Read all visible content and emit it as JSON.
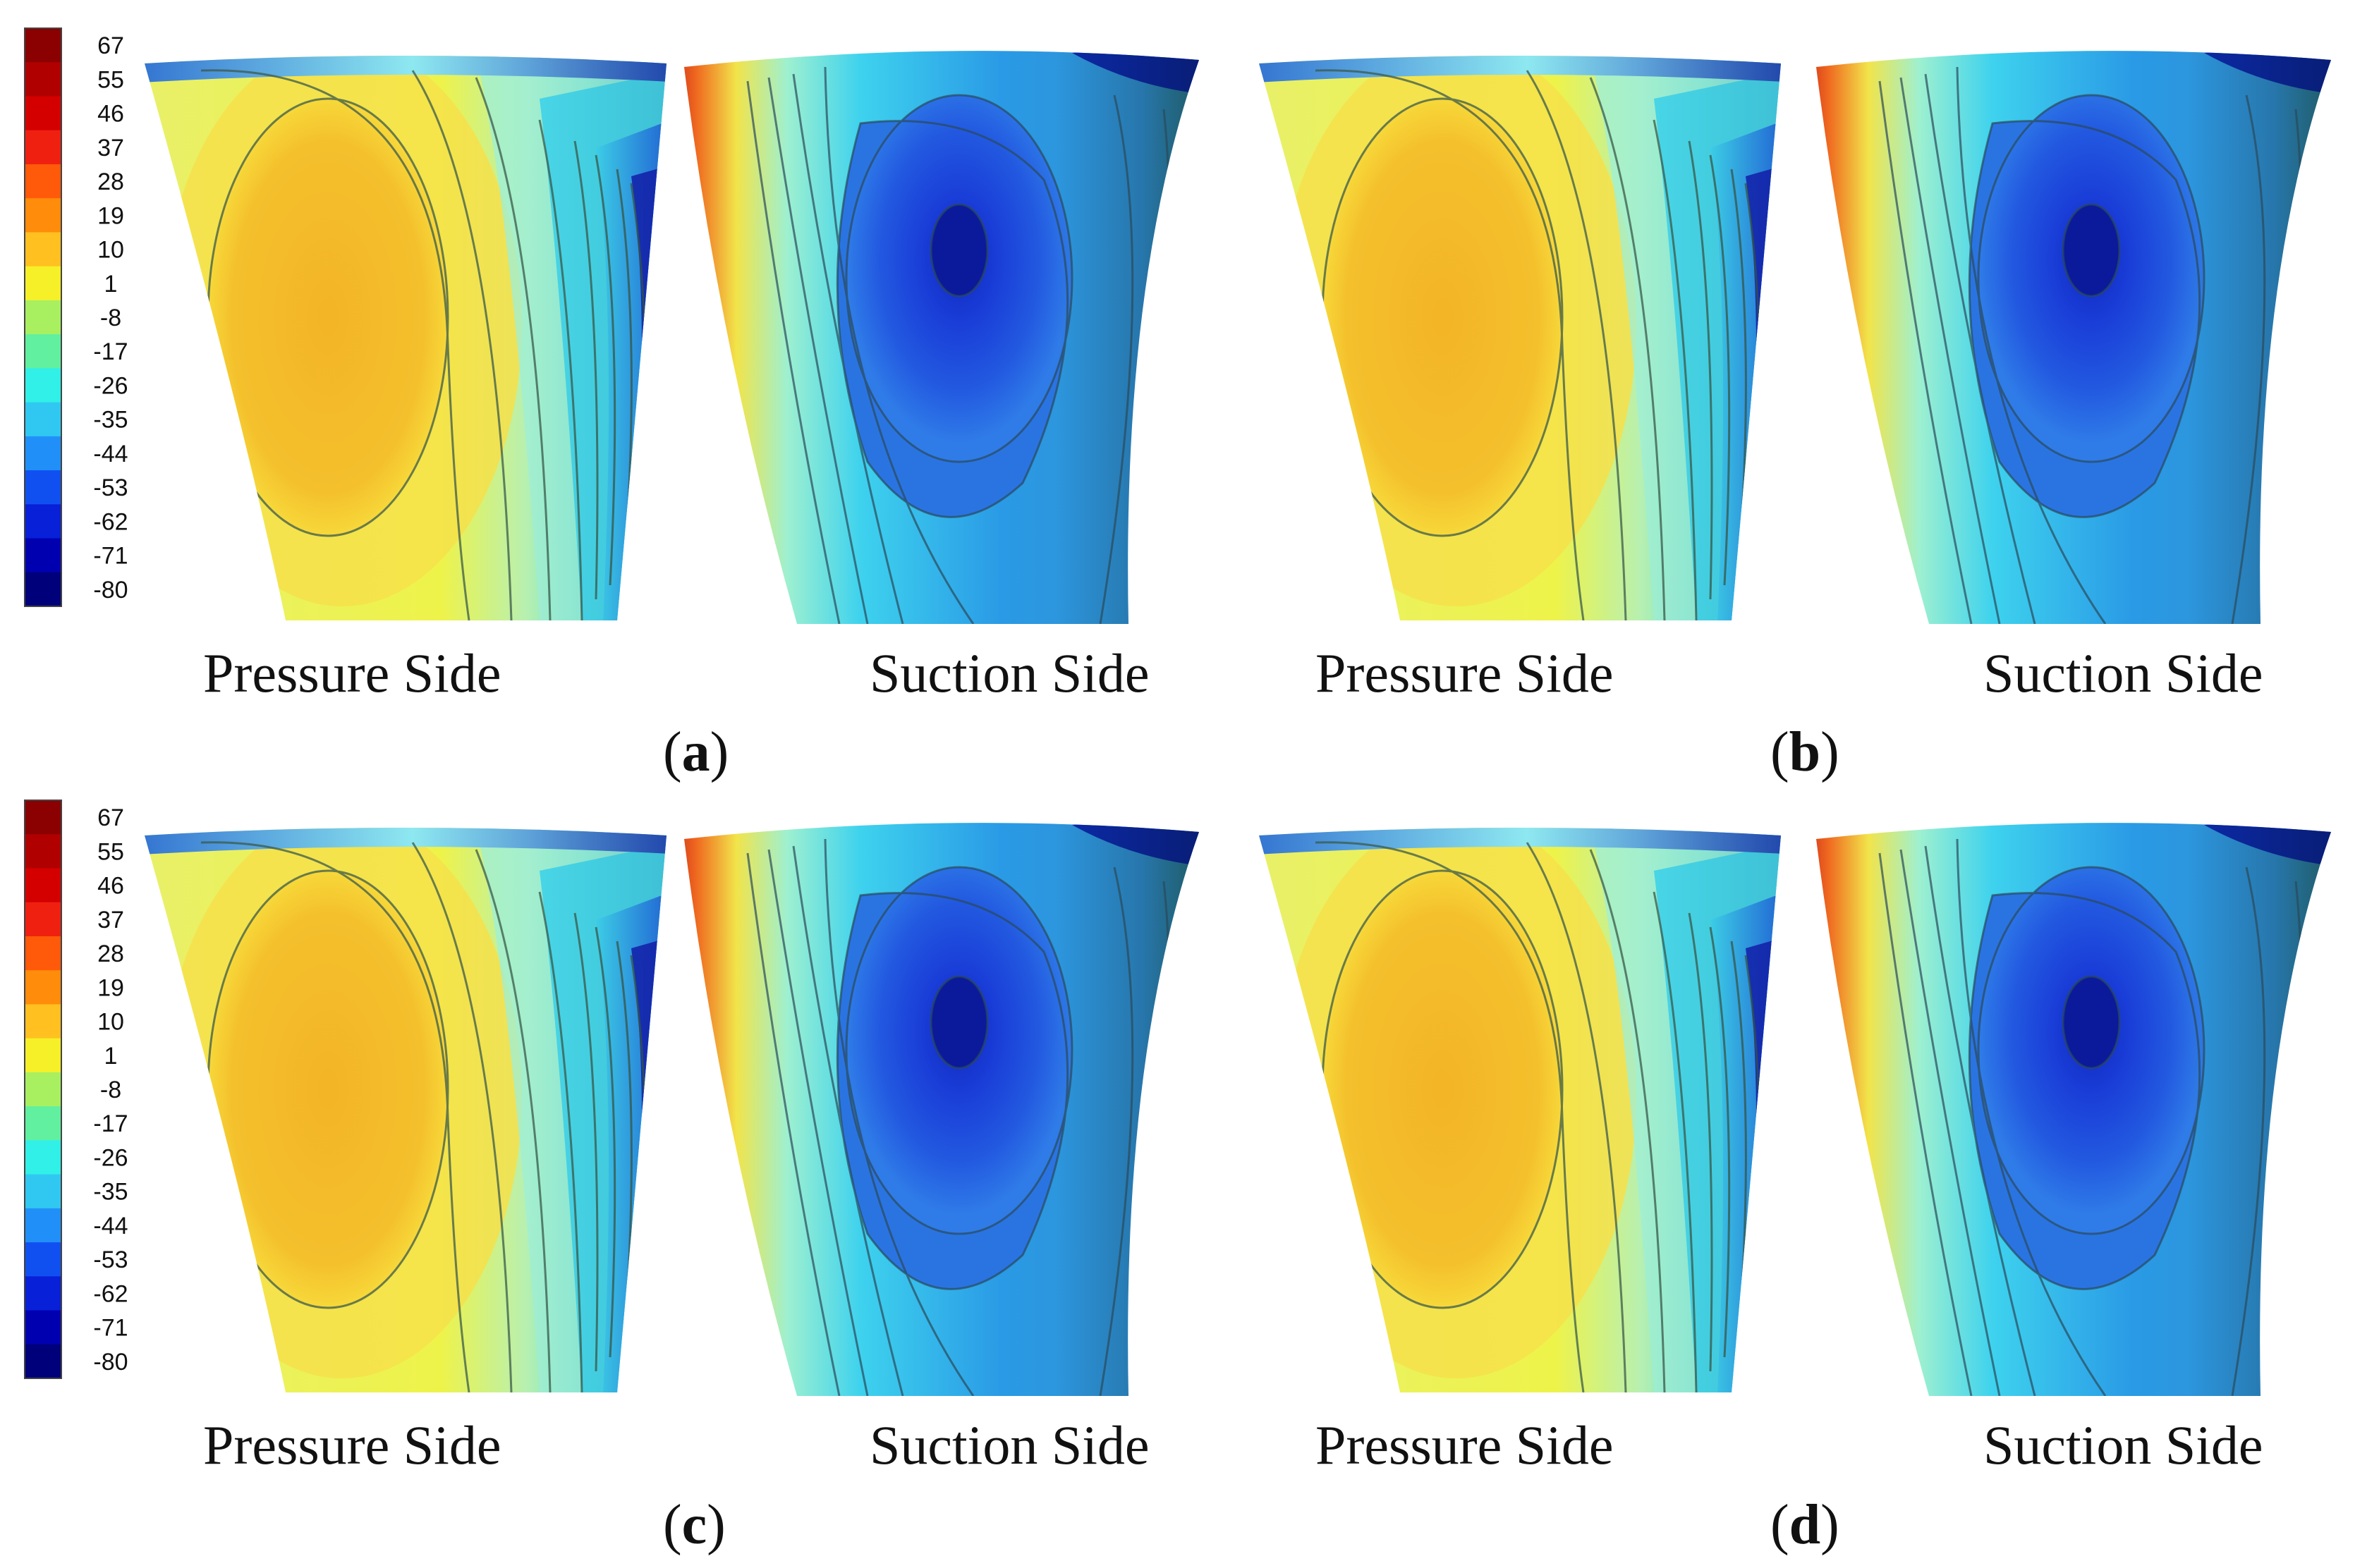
{
  "figure": {
    "colorbar": {
      "tick_labels": [
        "67",
        "55",
        "46",
        "37",
        "28",
        "19",
        "10",
        "1",
        "-8",
        "-17",
        "-26",
        "-35",
        "-44",
        "-53",
        "-62",
        "-71",
        "-80"
      ],
      "colors": [
        "#8b0000",
        "#b00000",
        "#d40000",
        "#f02010",
        "#ff5a0a",
        "#ff8c0a",
        "#ffc020",
        "#f5f028",
        "#a8f060",
        "#60f0a0",
        "#30f0e8",
        "#30c8f0",
        "#2090f8",
        "#1050f0",
        "#0820d8",
        "#0000b0",
        "#00007a"
      ]
    },
    "panels": [
      {
        "letter": "a",
        "pressure_label": "Pressure Side",
        "suction_label": "Suction Side"
      },
      {
        "letter": "b",
        "pressure_label": "Pressure Side",
        "suction_label": "Suction Side"
      },
      {
        "letter": "c",
        "pressure_label": "Pressure Side",
        "suction_label": "Suction Side"
      },
      {
        "letter": "d",
        "pressure_label": "Pressure Side",
        "suction_label": "Suction Side"
      }
    ]
  }
}
